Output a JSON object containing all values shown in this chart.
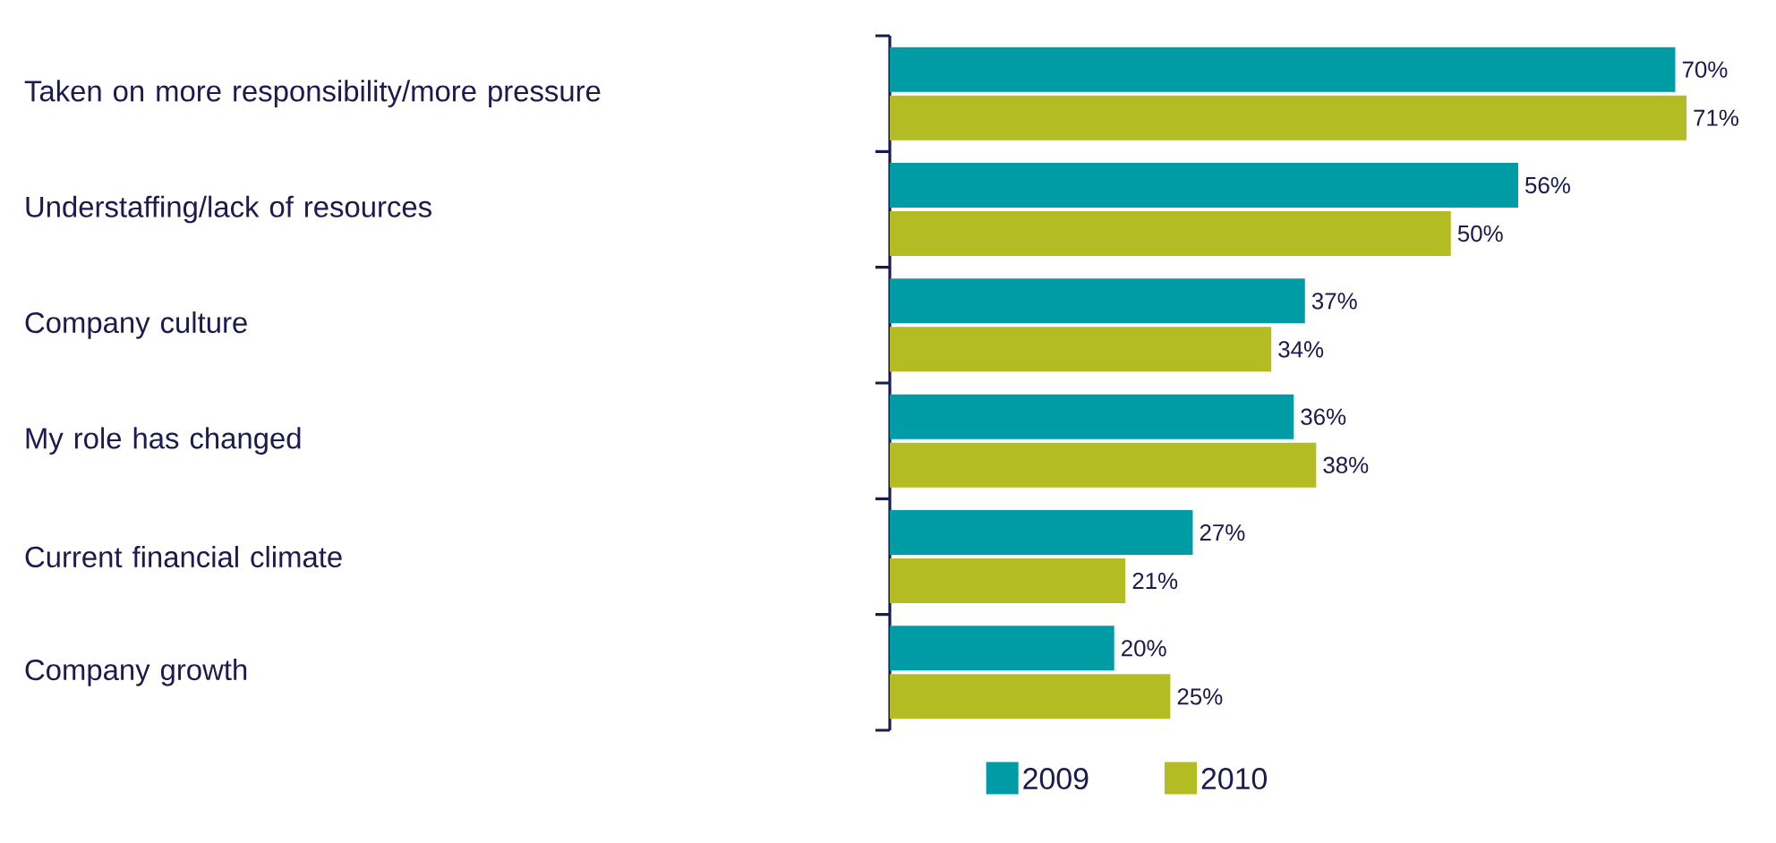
{
  "chart_data": {
    "type": "bar",
    "orientation": "horizontal",
    "categories": [
      "Taken on more responsibility/more pressure",
      "Understaffing/lack of resources",
      "Company culture",
      "My role has changed",
      "Current financial climate",
      "Company growth"
    ],
    "series": [
      {
        "name": "2009",
        "color": "#009ca6",
        "values": [
          70,
          56,
          37,
          36,
          27,
          20
        ],
        "value_labels": [
          "70%",
          "56%",
          "37%",
          "36%",
          "27%",
          "20%"
        ]
      },
      {
        "name": "2010",
        "color": "#b3bd23",
        "values": [
          71,
          50,
          34,
          38,
          21,
          25
        ],
        "value_labels": [
          "71%",
          "50%",
          "34%",
          "38%",
          "21%",
          "25%"
        ]
      }
    ],
    "legend": "bottom"
  }
}
